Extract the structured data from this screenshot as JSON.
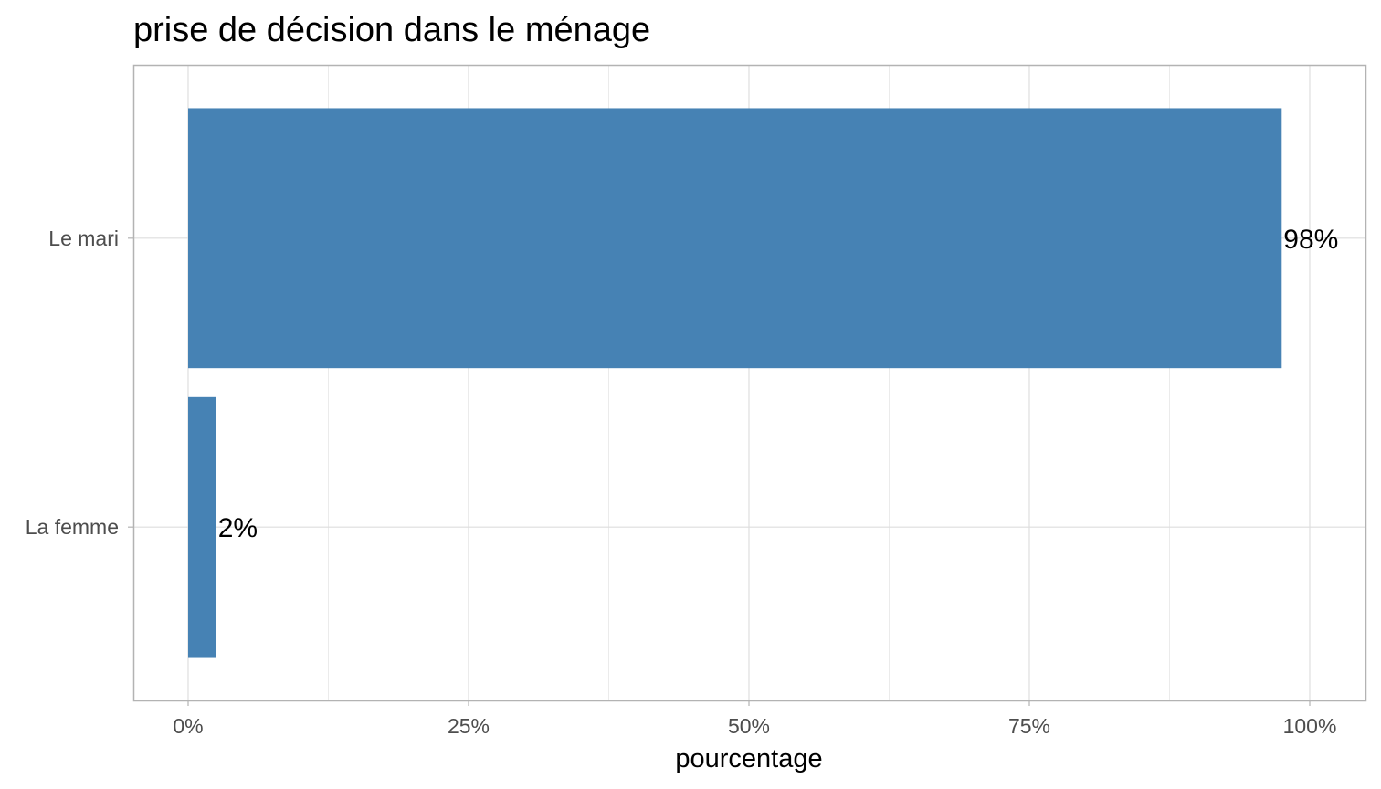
{
  "chart_data": {
    "type": "bar",
    "orientation": "horizontal",
    "title": "prise de décision dans le ménage",
    "xlabel": "pourcentage",
    "ylabel": "",
    "categories": [
      "La femme",
      "Le mari"
    ],
    "values": [
      2.5,
      97.5
    ],
    "data_labels": [
      "2%",
      "98%"
    ],
    "xlim": [
      0,
      100
    ],
    "x_ticks": [
      0,
      25,
      50,
      75,
      100
    ],
    "x_tick_labels": [
      "0%",
      "25%",
      "50%",
      "75%",
      "100%"
    ],
    "grid": true,
    "bar_color": "#4682b4"
  }
}
